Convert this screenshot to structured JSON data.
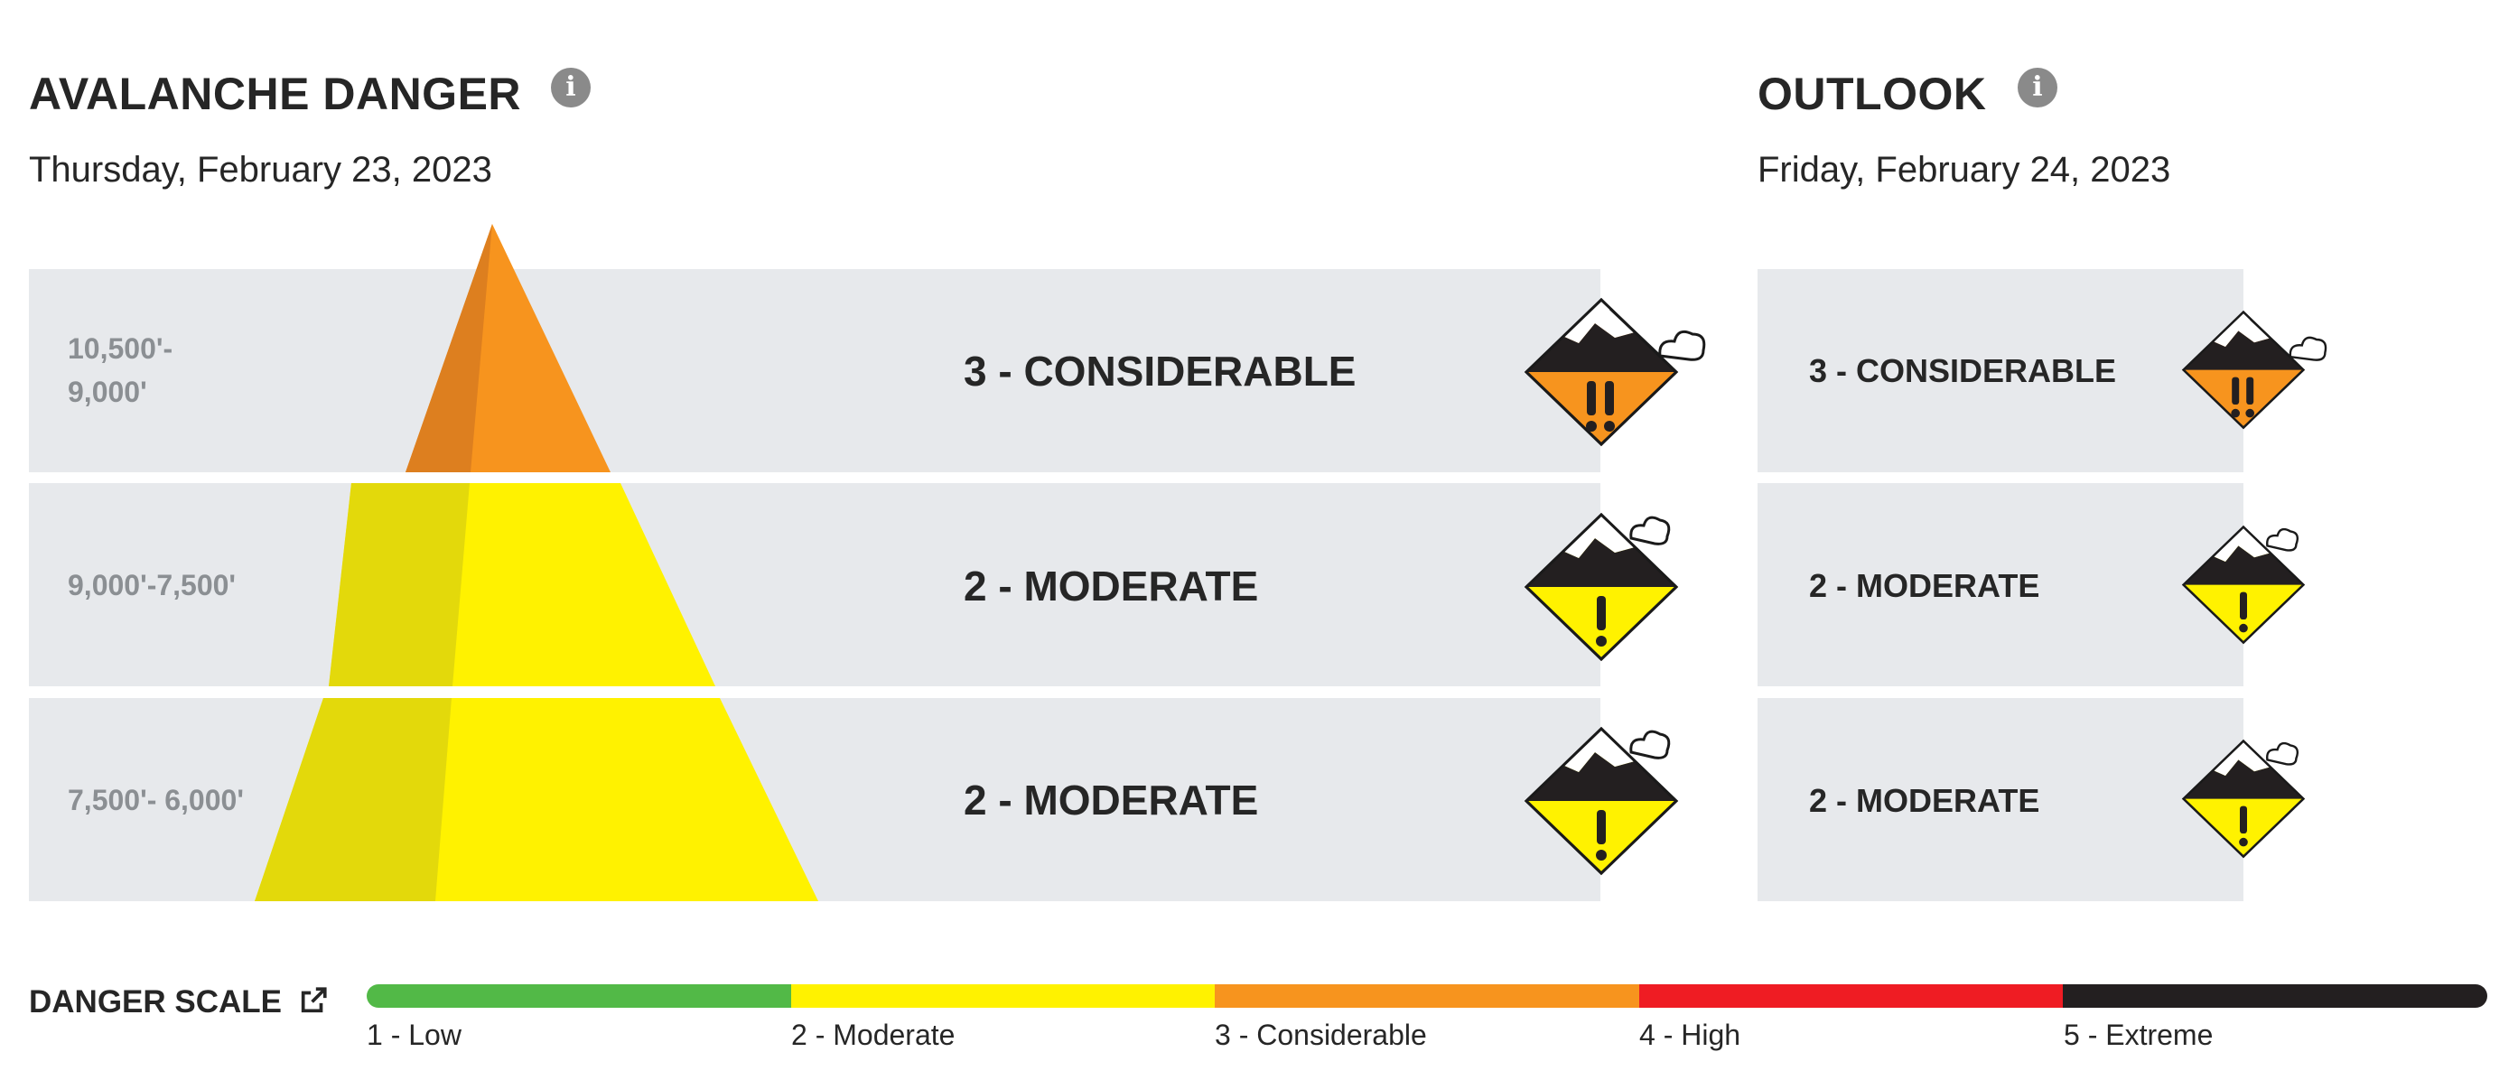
{
  "current": {
    "title": "AVALANCHE DANGER",
    "date": "Thursday, February 23, 2023",
    "info_icon": "info-icon",
    "bands": [
      {
        "elevation_line1": "10,500'-",
        "elevation_line2": "9,000'",
        "rating": "3 - CONSIDERABLE",
        "level": 3
      },
      {
        "elevation_line1": "9,000'-7,500'",
        "elevation_line2": "",
        "rating": "2 - MODERATE",
        "level": 2
      },
      {
        "elevation_line1": "7,500'- 6,000'",
        "elevation_line2": "",
        "rating": "2 - MODERATE",
        "level": 2
      }
    ]
  },
  "outlook": {
    "title": "OUTLOOK",
    "date": "Friday, February 24, 2023",
    "info_icon": "info-icon",
    "bands": [
      {
        "rating": "3 - CONSIDERABLE",
        "level": 3
      },
      {
        "rating": "2 - MODERATE",
        "level": 2
      },
      {
        "rating": "2 - MODERATE",
        "level": 2
      }
    ]
  },
  "danger_scale": {
    "label": "DANGER SCALE",
    "link_icon": "external-link-icon",
    "levels": [
      {
        "label": "1 - Low",
        "color": "#52b947"
      },
      {
        "label": "2 - Moderate",
        "color": "#fff200"
      },
      {
        "label": "3 - Considerable",
        "color": "#f7941e"
      },
      {
        "label": "4 - High",
        "color": "#ef1c23"
      },
      {
        "label": "5 - Extreme",
        "color": "#231f20"
      }
    ]
  },
  "colors": {
    "band_background": "#e7e9ec",
    "considerable": "#f7941e",
    "considerable_shade": "#dd7f1f",
    "moderate": "#fff200",
    "moderate_shade": "#e3d90b"
  }
}
